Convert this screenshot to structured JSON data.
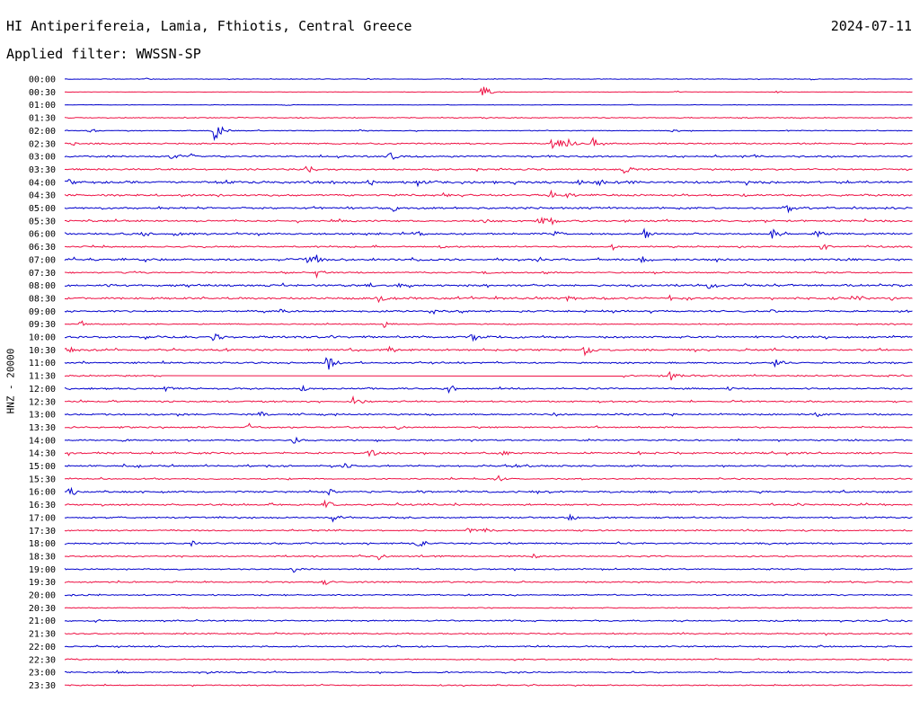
{
  "header": {
    "station": "HI Antiperifereia, Lamia, Fthiotis, Central Greece",
    "date": "2024-07-11",
    "filter_line": "Applied filter: WWSSN-SP"
  },
  "axis": {
    "ylabel": "HNZ - 20000"
  },
  "colors": {
    "even_trace": "#0000cc",
    "odd_trace": "#ee1144",
    "text": "#000000",
    "background": "#ffffff"
  },
  "chart_data": {
    "type": "line",
    "subtype": "helicorder",
    "title": "HI Antiperifereia, Lamia, Fthiotis, Central Greece",
    "date": "2024-07-11",
    "filter": "WWSSN-SP",
    "ylabel": "HNZ - 20000",
    "xlabel": "",
    "row_interval_minutes": 30,
    "x_range_minutes": [
      0,
      30
    ],
    "grid": false,
    "rows": [
      {
        "label": "00:00",
        "noise": 0.35,
        "events": [
          [
            2.9,
            0.7
          ],
          [
            10.7,
            0.6
          ],
          [
            17.0,
            0.5
          ],
          [
            26.4,
            0.6
          ]
        ]
      },
      {
        "label": "00:30",
        "noise": 0.25,
        "events": [
          [
            14.8,
            3.5
          ],
          [
            21.6,
            0.8
          ],
          [
            25.2,
            0.6
          ]
        ]
      },
      {
        "label": "01:00",
        "noise": 0.3,
        "events": [
          [
            7.8,
            0.5
          ],
          [
            20.0,
            0.5
          ]
        ]
      },
      {
        "label": "01:30",
        "noise": 0.6,
        "events": [
          [
            6.2,
            0.7
          ],
          [
            14.8,
            0.8
          ],
          [
            23.9,
            0.6
          ]
        ]
      },
      {
        "label": "02:00",
        "noise": 0.45,
        "events": [
          [
            0.9,
            1.6
          ],
          [
            5.3,
            6.0
          ],
          [
            10.5,
            0.9
          ],
          [
            21.5,
            0.8
          ]
        ]
      },
      {
        "label": "02:30",
        "noise": 0.9,
        "events": [
          [
            0.3,
            1.2
          ],
          [
            17.3,
            5.0
          ],
          [
            17.8,
            2.8
          ],
          [
            18.7,
            3.8
          ]
        ]
      },
      {
        "label": "03:00",
        "noise": 1.0,
        "events": [
          [
            3.8,
            2.0
          ],
          [
            4.5,
            1.8
          ],
          [
            11.5,
            2.6
          ],
          [
            24.4,
            1.2
          ]
        ]
      },
      {
        "label": "03:30",
        "noise": 1.0,
        "events": [
          [
            8.6,
            3.0
          ],
          [
            19.8,
            2.8
          ]
        ]
      },
      {
        "label": "04:00",
        "noise": 1.5,
        "events": [
          [
            0.1,
            2.5
          ],
          [
            5.7,
            1.4
          ],
          [
            10.8,
            2.0
          ],
          [
            12.5,
            2.2
          ],
          [
            18.2,
            1.5
          ],
          [
            18.8,
            2.8
          ]
        ]
      },
      {
        "label": "04:30",
        "noise": 1.2,
        "events": [
          [
            13.4,
            1.5
          ],
          [
            17.2,
            2.5
          ],
          [
            17.8,
            2.0
          ],
          [
            24.0,
            1.5
          ]
        ]
      },
      {
        "label": "05:00",
        "noise": 1.2,
        "events": [
          [
            11.6,
            2.2
          ],
          [
            25.6,
            2.4
          ]
        ]
      },
      {
        "label": "05:30",
        "noise": 1.1,
        "events": [
          [
            14.8,
            1.5
          ],
          [
            16.8,
            3.5
          ],
          [
            17.2,
            2.2
          ]
        ]
      },
      {
        "label": "06:00",
        "noise": 1.1,
        "events": [
          [
            2.8,
            2.5
          ],
          [
            3.9,
            1.8
          ],
          [
            12.5,
            1.5
          ],
          [
            17.3,
            3.0
          ],
          [
            20.5,
            2.8
          ],
          [
            25.0,
            3.5
          ],
          [
            26.6,
            2.4
          ]
        ]
      },
      {
        "label": "06:30",
        "noise": 0.9,
        "events": [
          [
            13.3,
            1.2
          ],
          [
            19.4,
            2.0
          ],
          [
            26.8,
            2.5
          ]
        ]
      },
      {
        "label": "07:00",
        "noise": 1.3,
        "events": [
          [
            8.6,
            2.0
          ],
          [
            8.9,
            3.0
          ],
          [
            12.3,
            1.6
          ],
          [
            20.4,
            2.2
          ]
        ]
      },
      {
        "label": "07:30",
        "noise": 0.9,
        "events": [
          [
            8.9,
            2.8
          ],
          [
            14.8,
            1.5
          ],
          [
            17.0,
            1.3
          ]
        ]
      },
      {
        "label": "08:00",
        "noise": 1.3,
        "events": [
          [
            1.5,
            1.5
          ],
          [
            10.7,
            2.0
          ],
          [
            11.8,
            1.6
          ],
          [
            22.8,
            2.8
          ]
        ]
      },
      {
        "label": "08:30",
        "noise": 1.3,
        "events": [
          [
            11.1,
            2.2
          ],
          [
            17.8,
            2.5
          ],
          [
            21.4,
            1.6
          ],
          [
            27.9,
            2.2
          ]
        ]
      },
      {
        "label": "09:00",
        "noise": 1.1,
        "events": [
          [
            7.6,
            2.0
          ],
          [
            13.0,
            2.2
          ],
          [
            14.0,
            1.4
          ],
          [
            25.0,
            1.3
          ]
        ]
      },
      {
        "label": "09:30",
        "noise": 0.7,
        "events": [
          [
            0.6,
            2.2
          ],
          [
            11.3,
            2.2
          ]
        ]
      },
      {
        "label": "10:00",
        "noise": 1.3,
        "events": [
          [
            5.3,
            3.2
          ],
          [
            14.4,
            3.0
          ]
        ]
      },
      {
        "label": "10:30",
        "noise": 1.2,
        "events": [
          [
            0.1,
            2.5
          ],
          [
            11.5,
            2.2
          ],
          [
            18.4,
            3.2
          ]
        ]
      },
      {
        "label": "11:00",
        "noise": 1.0,
        "events": [
          [
            9.3,
            4.5
          ],
          [
            25.1,
            3.0
          ]
        ]
      },
      {
        "label": "11:30",
        "noise": 1.0,
        "events": [
          [
            21.4,
            3.5
          ]
        ],
        "gap": [
          3.5,
          19.7
        ]
      },
      {
        "label": "12:00",
        "noise": 1.0,
        "events": [
          [
            3.6,
            2.2
          ],
          [
            8.4,
            1.6
          ],
          [
            13.6,
            2.6
          ],
          [
            23.5,
            1.4
          ]
        ]
      },
      {
        "label": "12:30",
        "noise": 1.0,
        "events": [
          [
            10.2,
            3.2
          ]
        ]
      },
      {
        "label": "13:00",
        "noise": 1.0,
        "events": [
          [
            6.9,
            1.8
          ],
          [
            8.3,
            1.2
          ],
          [
            17.3,
            1.4
          ],
          [
            26.6,
            1.4
          ]
        ]
      },
      {
        "label": "13:30",
        "noise": 0.9,
        "events": [
          [
            6.5,
            2.5
          ],
          [
            11.8,
            1.8
          ]
        ]
      },
      {
        "label": "14:00",
        "noise": 0.9,
        "events": [
          [
            2.0,
            1.2
          ],
          [
            8.1,
            2.5
          ],
          [
            11.0,
            1.4
          ]
        ]
      },
      {
        "label": "14:30",
        "noise": 1.2,
        "events": [
          [
            10.8,
            2.5
          ],
          [
            15.5,
            1.8
          ]
        ]
      },
      {
        "label": "15:00",
        "noise": 1.0,
        "events": [
          [
            9.9,
            1.8
          ],
          [
            15.9,
            1.4
          ]
        ]
      },
      {
        "label": "15:30",
        "noise": 0.8,
        "events": [
          [
            15.3,
            2.2
          ]
        ]
      },
      {
        "label": "16:00",
        "noise": 1.1,
        "events": [
          [
            0.2,
            2.8
          ],
          [
            9.3,
            2.2
          ],
          [
            12.5,
            1.8
          ]
        ]
      },
      {
        "label": "16:30",
        "noise": 1.1,
        "events": [
          [
            9.2,
            3.0
          ],
          [
            12.8,
            1.6
          ]
        ]
      },
      {
        "label": "17:00",
        "noise": 1.0,
        "events": [
          [
            9.5,
            2.5
          ],
          [
            17.9,
            2.5
          ]
        ]
      },
      {
        "label": "17:30",
        "noise": 0.9,
        "events": [
          [
            14.3,
            1.8
          ],
          [
            14.9,
            1.6
          ]
        ]
      },
      {
        "label": "18:00",
        "noise": 1.0,
        "events": [
          [
            4.5,
            2.6
          ],
          [
            12.5,
            2.8
          ]
        ]
      },
      {
        "label": "18:30",
        "noise": 0.9,
        "events": [
          [
            11.1,
            2.5
          ],
          [
            16.6,
            1.4
          ]
        ]
      },
      {
        "label": "19:00",
        "noise": 0.8,
        "events": [
          [
            8.1,
            2.2
          ]
        ]
      },
      {
        "label": "19:30",
        "noise": 0.9,
        "events": [
          [
            9.2,
            2.0
          ]
        ]
      },
      {
        "label": "20:00",
        "noise": 0.8,
        "events": []
      },
      {
        "label": "20:30",
        "noise": 0.6,
        "events": []
      },
      {
        "label": "21:00",
        "noise": 0.9,
        "events": []
      },
      {
        "label": "21:30",
        "noise": 0.8,
        "events": []
      },
      {
        "label": "22:00",
        "noise": 0.9,
        "events": []
      },
      {
        "label": "22:30",
        "noise": 0.7,
        "events": []
      },
      {
        "label": "23:00",
        "noise": 0.8,
        "events": [
          [
            1.8,
            1.2
          ],
          [
            5.1,
            1.2
          ]
        ]
      },
      {
        "label": "23:30",
        "noise": 0.7,
        "events": []
      }
    ]
  }
}
